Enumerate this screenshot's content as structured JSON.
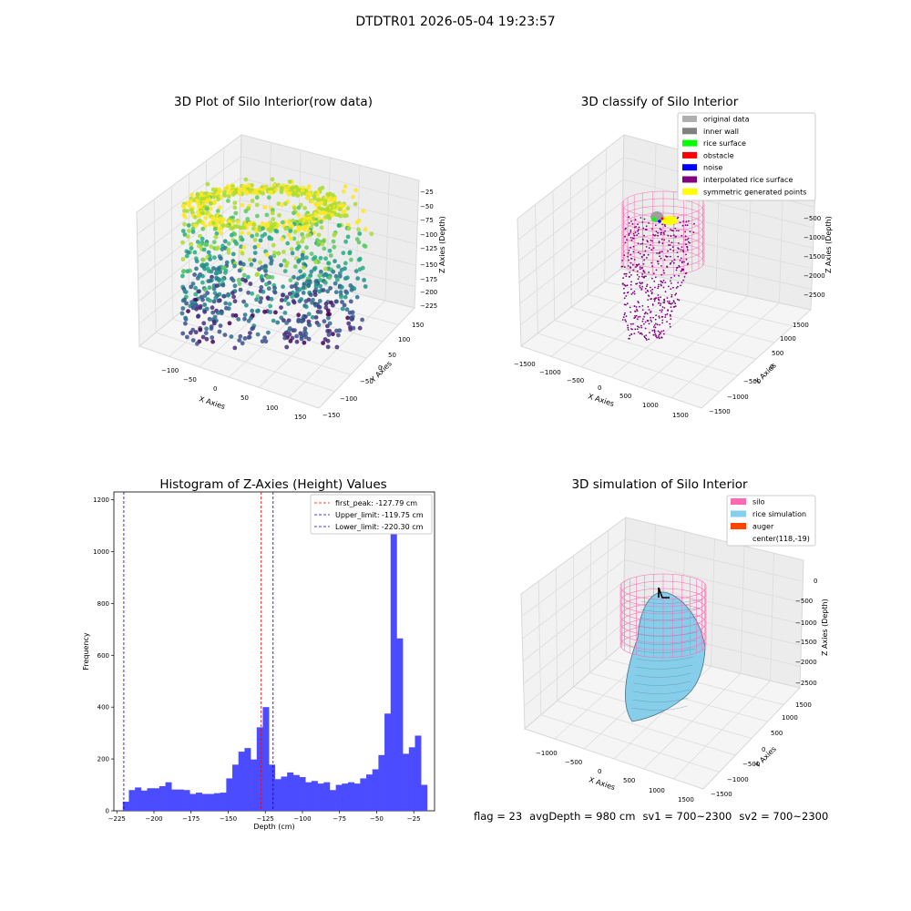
{
  "figure": {
    "suptitle": "DTDTR01 2026-05-04 19:23:57"
  },
  "panels": {
    "raw": {
      "title": "3D Plot of Silo Interior(row data)",
      "xlabel": "X Axies",
      "ylabel": "Y Axies",
      "zlabel": "Z Axies (Depth)",
      "xticks": [
        "−100",
        "−50",
        "0",
        "50",
        "100",
        "150"
      ],
      "yticks": [
        "−150",
        "−100",
        "−50",
        "0",
        "50",
        "100",
        "150"
      ],
      "zticks": [
        "−225",
        "−200",
        "−175",
        "−150",
        "−125",
        "−100",
        "−75",
        "−50",
        "−25"
      ]
    },
    "classify": {
      "title": "3D classify of Silo Interior",
      "xlabel": "X Axies",
      "ylabel": "Y Axies",
      "zlabel": "Z Axies (Depth)",
      "xticks": [
        "−1500",
        "−1000",
        "−500",
        "0",
        "500",
        "1000",
        "1500"
      ],
      "yticks": [
        "−1500",
        "−1000",
        "−500",
        "0",
        "500",
        "1000",
        "1500"
      ],
      "zticks": [
        "−2500",
        "−2000",
        "−1500",
        "−1000",
        "−500",
        "0"
      ],
      "legend": [
        {
          "label": "original data",
          "color": "#b0b0b0"
        },
        {
          "label": "inner wall",
          "color": "#808080"
        },
        {
          "label": "rice surface",
          "color": "#00ff00"
        },
        {
          "label": "obstacle",
          "color": "#ff0000"
        },
        {
          "label": "noise",
          "color": "#0000ff"
        },
        {
          "label": "interpolated rice surface",
          "color": "#800080"
        },
        {
          "label": "symmetric generated points",
          "color": "#ffff00"
        }
      ]
    },
    "simulation": {
      "title": "3D simulation of Silo Interior",
      "xlabel": "X Axies",
      "ylabel": "Y Axies",
      "zlabel": "Z Axies (Depth)",
      "xticks": [
        "−1000",
        "−500",
        "0",
        "500",
        "1000",
        "1500"
      ],
      "yticks": [
        "−1500",
        "−1000",
        "−500",
        "0",
        "500",
        "1000",
        "1500"
      ],
      "zticks": [
        "−2500",
        "−2000",
        "−1500",
        "−1000",
        "−500",
        "0"
      ],
      "legend": [
        {
          "label": "silo",
          "color": "#ff69b4"
        },
        {
          "label": "rice simulation",
          "color": "#87ceeb"
        },
        {
          "label": "auger",
          "color": "#ff4500"
        },
        {
          "label": "center(118,-19)",
          "color": ""
        }
      ]
    }
  },
  "footer": {
    "flag": "flag = 23",
    "avg_depth": "avgDepth = 980 cm",
    "sv1": "sv1 = 700~2300",
    "sv2": "sv2 = 700~2300"
  },
  "colors": {
    "hist_bar": "#4b4bff",
    "first_peak_line": "#ff0000",
    "upper_line": "#0000cc",
    "lower_line": "#0000cc",
    "silo_wire": "#ff69b4",
    "rice_sim": "#87ceeb",
    "pane": "#f2f2f2"
  },
  "chart_data": [
    {
      "type": "scatter",
      "title": "3D Plot of Silo Interior(row data)",
      "xlabel": "X Axies",
      "ylabel": "Y Axies",
      "zlabel": "Z Axies (Depth)",
      "xlim": [
        -130,
        160
      ],
      "ylim": [
        -160,
        160
      ],
      "zlim": [
        -235,
        -20
      ],
      "colormap": "viridis"
    },
    {
      "type": "scatter",
      "title": "3D classify of Silo Interior",
      "xlabel": "X Axies",
      "ylabel": "Y Axies",
      "zlabel": "Z Axies (Depth)",
      "xlim": [
        -1600,
        1600
      ],
      "ylim": [
        -1600,
        1600
      ],
      "zlim": [
        -2700,
        0
      ]
    },
    {
      "type": "bar",
      "title": "Histogram of Z-Axies (Height) Values",
      "xlabel": "Depth (cm)",
      "ylabel": "Frequency",
      "xlim": [
        -227,
        -11
      ],
      "ylim": [
        0,
        1230
      ],
      "xticks": [
        -225,
        -200,
        -175,
        -150,
        -125,
        -100,
        -75,
        -50,
        -25
      ],
      "yticks": [
        0,
        200,
        400,
        600,
        800,
        1000,
        1200
      ],
      "bin_start": -221,
      "bin_width": 4.1,
      "values": [
        35,
        80,
        90,
        78,
        87,
        87,
        95,
        110,
        82,
        82,
        80,
        65,
        70,
        65,
        65,
        68,
        70,
        125,
        178,
        228,
        242,
        198,
        322,
        400,
        178,
        122,
        132,
        148,
        138,
        130,
        110,
        115,
        105,
        110,
        80,
        100,
        105,
        110,
        105,
        125,
        140,
        160,
        215,
        375,
        1160,
        665,
        220,
        245,
        290,
        100
      ],
      "vlines": [
        {
          "label": "first_peak: -127.79 cm",
          "x": -127.79,
          "color": "#ff0000"
        },
        {
          "label": "Upper_limit: -119.75 cm",
          "x": -119.75,
          "color": "#0000cc"
        },
        {
          "label": "Lower_limit: -220.30 cm",
          "x": -220.3,
          "color": "#0000cc"
        }
      ],
      "legend_loc": "upper right"
    },
    {
      "type": "surface",
      "title": "3D simulation of Silo Interior",
      "xlabel": "X Axies",
      "ylabel": "Y Axies",
      "zlabel": "Z Axies (Depth)",
      "xlim": [
        -1300,
        1700
      ],
      "ylim": [
        -1600,
        1600
      ],
      "zlim": [
        -2700,
        200
      ]
    }
  ]
}
